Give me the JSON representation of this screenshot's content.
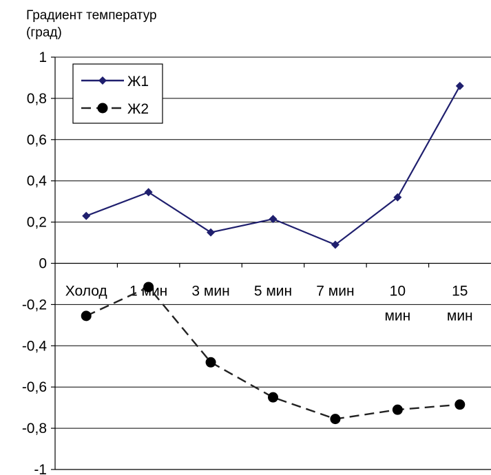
{
  "colors": {
    "series1": "#1f1f6e",
    "series2": "#222222",
    "grid": "#000000",
    "background": "#ffffff"
  },
  "chart_data": {
    "type": "line",
    "ylabel_line1": "Градиент температур",
    "ylabel_line2": "(град)",
    "ylim": [
      -1,
      1
    ],
    "yticks": [
      1,
      0.8,
      0.6,
      0.4,
      0.2,
      0,
      -0.2,
      -0.4,
      -0.6,
      -0.8,
      -1
    ],
    "ytick_labels": [
      "1",
      "0,8",
      "0,6",
      "0,4",
      "0,2",
      "0",
      "-0,2",
      "-0,4",
      "-0,6",
      "-0,8",
      "-1"
    ],
    "categories": [
      [
        "Холод"
      ],
      [
        "1 мин"
      ],
      [
        "3 мин"
      ],
      [
        "5 мин"
      ],
      [
        "7 мин"
      ],
      [
        "10",
        "мин"
      ],
      [
        "15",
        "мин"
      ]
    ],
    "grid": true,
    "legend_position": "top-left",
    "series": [
      {
        "name": "Ж1",
        "marker": "diamond",
        "line": "solid",
        "values": [
          0.23,
          0.345,
          0.15,
          0.215,
          0.09,
          0.32,
          0.86
        ]
      },
      {
        "name": "Ж2",
        "marker": "circle",
        "line": "dashed",
        "values": [
          -0.255,
          -0.115,
          -0.48,
          -0.65,
          -0.755,
          -0.71,
          -0.685
        ]
      }
    ]
  }
}
